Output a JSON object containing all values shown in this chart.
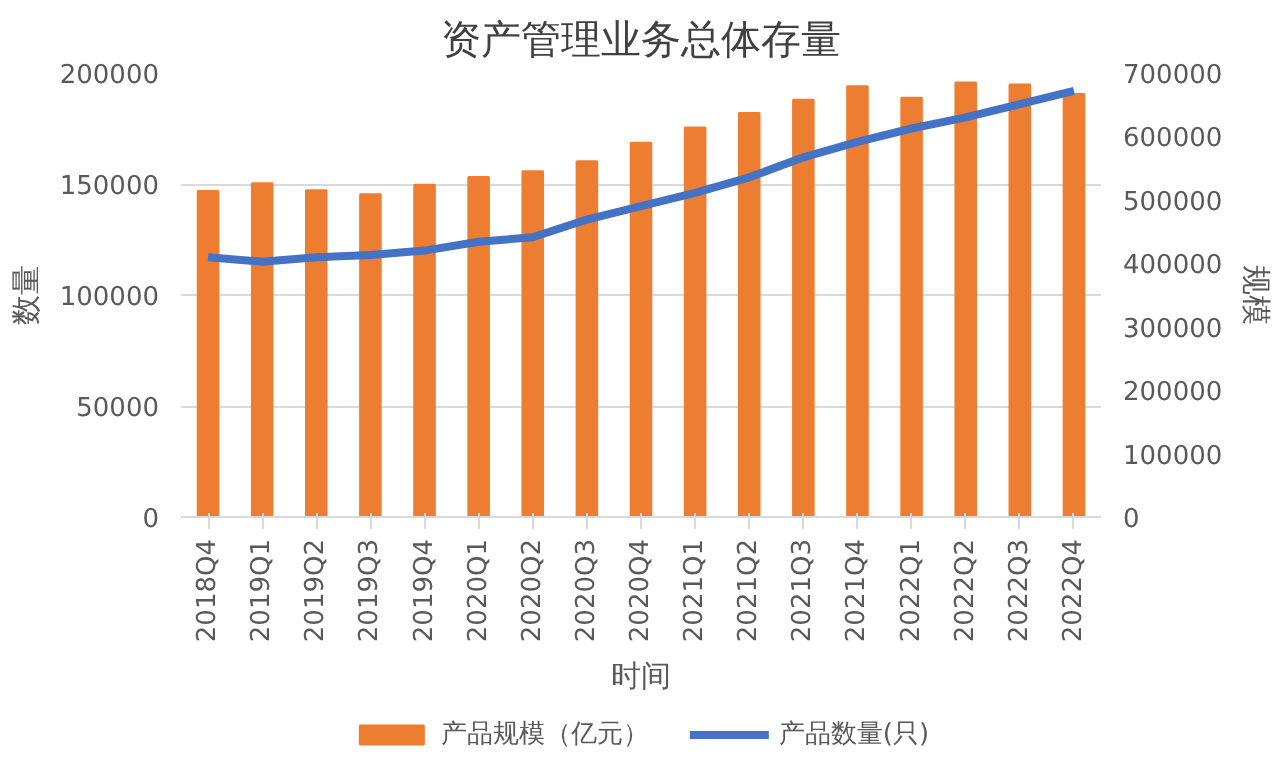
{
  "chart_data": {
    "type": "bar",
    "title": "资产管理业务总体存量",
    "xlabel": "时间",
    "ylabel": "数量",
    "y2label": "规模",
    "categories": [
      "2018Q4",
      "2019Q1",
      "2019Q2",
      "2019Q3",
      "2019Q4",
      "2020Q1",
      "2020Q2",
      "2020Q3",
      "2020Q4",
      "2021Q1",
      "2021Q2",
      "2021Q3",
      "2021Q4",
      "2022Q1",
      "2022Q2",
      "2022Q3",
      "2022Q4"
    ],
    "series": [
      {
        "name": "产品规模（亿元）",
        "axis": "y2",
        "color": "#ed7d31",
        "values": [
          514000,
          526000,
          515000,
          509000,
          524000,
          536000,
          545000,
          561000,
          590000,
          614000,
          637000,
          658000,
          679000,
          661000,
          685000,
          682000,
          667000
        ]
      },
      {
        "name": "产品数量(只)",
        "type": "line",
        "axis": "y",
        "color": "#4472c4",
        "values": [
          117000,
          115000,
          117000,
          118000,
          120000,
          124000,
          126000,
          134000,
          140000,
          146000,
          153000,
          162000,
          169000,
          175000,
          180000,
          186000,
          192000
        ]
      }
    ],
    "ylim": [
      0,
      200000
    ],
    "yticks": [
      0,
      50000,
      100000,
      150000,
      200000
    ],
    "y2lim": [
      0,
      700000
    ],
    "y2ticks": [
      0,
      100000,
      200000,
      300000,
      400000,
      500000,
      600000,
      700000
    ],
    "grid": "y",
    "legend": "bottom",
    "marker": "none",
    "line_style": "solid"
  }
}
